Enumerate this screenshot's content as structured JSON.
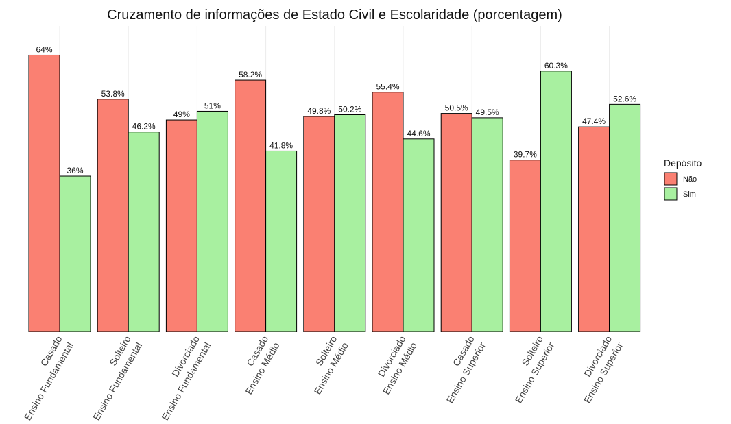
{
  "chart_data": {
    "type": "bar",
    "title": "Cruzamento de informações de Estado Civil e Escolaridade (porcentagem)",
    "xlabel": "",
    "ylabel": "",
    "ylim": [
      0,
      70
    ],
    "grid": "vertical only, light",
    "legend_position": "right",
    "legend_title": "Depósito",
    "categories": [
      [
        "Casado",
        "Ensino Fundamental"
      ],
      [
        "Solteiro",
        "Ensino Fundamental"
      ],
      [
        "Divorciado",
        "Ensino Fundamental"
      ],
      [
        "Casado",
        "Ensino Médio"
      ],
      [
        "Solteiro",
        "Ensino Médio"
      ],
      [
        "Divorciado",
        "Ensino Médio"
      ],
      [
        "Casado",
        "Ensino Superior"
      ],
      [
        "Solteiro",
        "Ensino Superior"
      ],
      [
        "Divorciado",
        "Ensino Superior"
      ]
    ],
    "series": [
      {
        "name": "Não",
        "color": "#FA8072",
        "values": [
          64,
          53.8,
          49,
          58.2,
          49.8,
          55.4,
          50.5,
          39.7,
          47.4
        ],
        "labels": [
          "64%",
          "53.8%",
          "49%",
          "58.2%",
          "49.8%",
          "55.4%",
          "50.5%",
          "39.7%",
          "47.4%"
        ]
      },
      {
        "name": "Sim",
        "color": "#A8F0A0",
        "values": [
          36,
          46.2,
          51,
          41.8,
          50.2,
          44.6,
          49.5,
          60.3,
          52.6
        ],
        "labels": [
          "36%",
          "46.2%",
          "51%",
          "41.8%",
          "50.2%",
          "44.6%",
          "49.5%",
          "60.3%",
          "52.6%"
        ]
      }
    ]
  }
}
